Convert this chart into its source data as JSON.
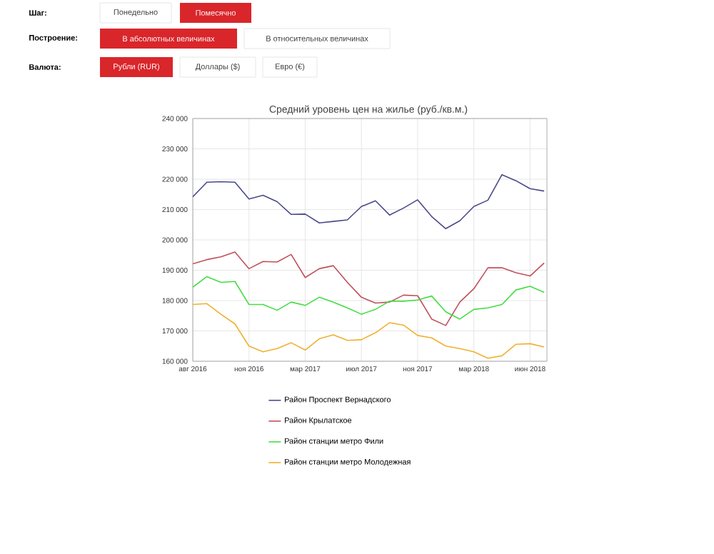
{
  "chart_data": {
    "type": "line",
    "title": "Средний уровень цен на жилье (руб./кв.м.)",
    "annotations": [
      "Шаг:",
      "Понедельно",
      "Помесячно",
      "Построение:",
      "В абсолютных величинах",
      "В относительных величинах",
      "Валюта:",
      "Рубли (RUR)",
      "Доллары ($)",
      "Евро (€)"
    ],
    "categories": [
      "авг 2016",
      null,
      null,
      null,
      "ноя 2016",
      null,
      null,
      null,
      "мар 2017",
      null,
      null,
      null,
      "июл 2017",
      null,
      null,
      null,
      "ноя 2017",
      null,
      null,
      null,
      "мар 2018",
      null,
      null,
      null,
      "июн 2018",
      null
    ],
    "ylim": [
      160000,
      240000
    ],
    "yticks": [
      {
        "value": 160000,
        "label": "160 000"
      },
      {
        "value": 170000,
        "label": "170 000"
      },
      {
        "value": 180000,
        "label": "180 000"
      },
      {
        "value": 190000,
        "label": "190 000"
      },
      {
        "value": 200000,
        "label": "200 000"
      },
      {
        "value": 210000,
        "label": "210 000"
      },
      {
        "value": 220000,
        "label": "220 000"
      },
      {
        "value": 230000,
        "label": "230 000"
      },
      {
        "value": 240000,
        "label": "240 000"
      }
    ],
    "grid": true,
    "legend": "bottom",
    "marker": "none",
    "line_style": "solid",
    "series": [
      {
        "name": "Район Проспект Вернадского",
        "color": "#4a4a8c",
        "values": [
          214200,
          219000,
          219200,
          219000,
          213500,
          214700,
          212600,
          208400,
          208500,
          205600,
          206100,
          206600,
          211000,
          212900,
          208200,
          210500,
          213200,
          207700,
          203700,
          206300,
          211000,
          213100,
          221500,
          219500,
          216900,
          216100
        ]
      },
      {
        "name": "Район Крылатское",
        "color": "#c0505a",
        "values": [
          192100,
          193500,
          194400,
          196000,
          190500,
          192900,
          192700,
          195200,
          187600,
          190500,
          191500,
          186000,
          181100,
          179200,
          179500,
          181800,
          181600,
          173900,
          171800,
          179500,
          183900,
          190800,
          190800,
          189200,
          188100,
          192400
        ]
      },
      {
        "name": "Район станции метро Фили",
        "color": "#44dd44",
        "values": [
          184400,
          187900,
          186000,
          186300,
          178700,
          178700,
          176800,
          179500,
          178400,
          181100,
          179500,
          177600,
          175500,
          177100,
          179800,
          179800,
          180200,
          181500,
          176300,
          173900,
          177100,
          177600,
          178700,
          183500,
          184700,
          182700
        ]
      },
      {
        "name": "Район станции метро Молодежная",
        "color": "#f0b030",
        "values": [
          178700,
          179000,
          175500,
          172300,
          165000,
          163100,
          164200,
          166100,
          163700,
          167400,
          168700,
          166900,
          167100,
          169400,
          172700,
          171900,
          168500,
          167700,
          165000,
          164200,
          163100,
          161000,
          161800,
          165600,
          165800,
          164700
        ]
      }
    ]
  }
}
